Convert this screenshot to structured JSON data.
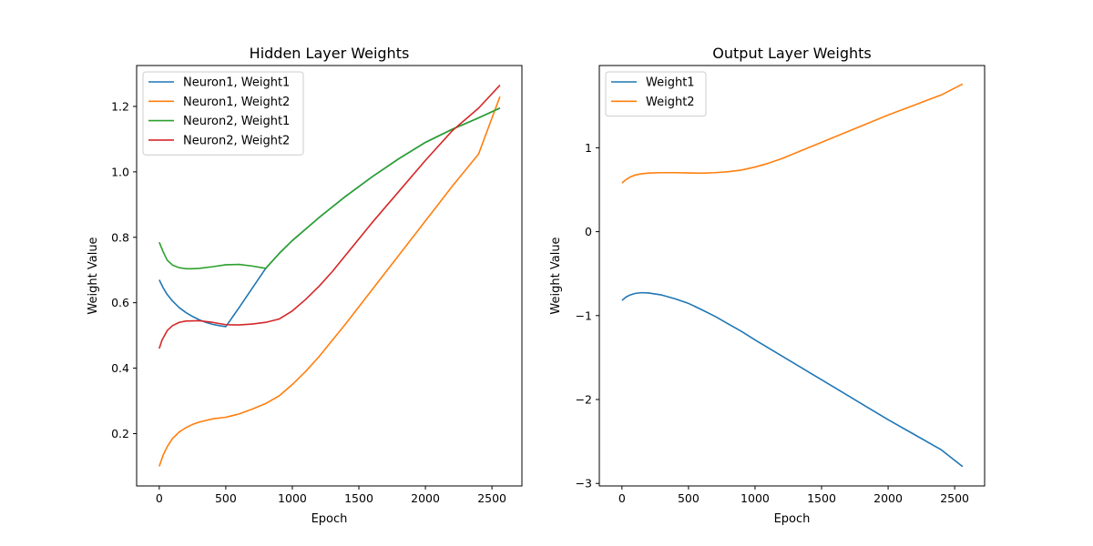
{
  "chart_data": [
    {
      "type": "line",
      "title": "Hidden Layer Weights",
      "xlabel": "Epoch",
      "ylabel": "Weight Value",
      "xlim": [
        -170,
        2725
      ],
      "ylim": [
        0.04,
        1.325
      ],
      "xticks": [
        0,
        500,
        1000,
        1500,
        2000,
        2500
      ],
      "xtick_labels": [
        "0",
        "500",
        "1000",
        "1500",
        "2000",
        "2500"
      ],
      "yticks": [
        0.2,
        0.4,
        0.6,
        0.8,
        1.0,
        1.2
      ],
      "ytick_labels": [
        "0.2",
        "0.4",
        "0.6",
        "0.8",
        "1.0",
        "1.2"
      ],
      "grid": false,
      "legend": "upper-left",
      "series": [
        {
          "name": "Neuron1, Weight1",
          "color": "#1f77b4",
          "x": [
            0,
            30,
            60,
            100,
            150,
            200,
            250,
            300,
            350,
            400,
            450,
            500,
            600,
            700,
            800,
            900,
            1000,
            1200,
            1400,
            1600,
            1800,
            2000,
            2200,
            2400,
            2560
          ],
          "y": [
            0.67,
            0.645,
            0.625,
            0.605,
            0.585,
            0.57,
            0.558,
            0.548,
            0.54,
            0.534,
            0.53,
            0.527,
            0.585,
            0.645,
            0.705,
            0.75,
            0.79,
            0.86,
            0.925,
            0.985,
            1.04,
            1.09,
            1.13,
            1.165,
            1.195
          ]
        },
        {
          "name": "Neuron1, Weight2",
          "color": "#ff7f0e",
          "x": [
            0,
            30,
            60,
            100,
            150,
            200,
            250,
            300,
            400,
            500,
            600,
            700,
            800,
            900,
            1000,
            1100,
            1200,
            1300,
            1400,
            1600,
            1800,
            2000,
            2200,
            2400,
            2560
          ],
          "y": [
            0.1,
            0.135,
            0.16,
            0.185,
            0.205,
            0.218,
            0.228,
            0.235,
            0.245,
            0.25,
            0.26,
            0.275,
            0.292,
            0.315,
            0.35,
            0.39,
            0.435,
            0.485,
            0.535,
            0.64,
            0.745,
            0.85,
            0.955,
            1.055,
            1.23
          ]
        },
        {
          "name": "Neuron2, Weight1",
          "color": "#2ca02c",
          "x": [
            0,
            30,
            60,
            100,
            150,
            200,
            250,
            300,
            400,
            500,
            600,
            700,
            800,
            900,
            1000,
            1200,
            1400,
            1600,
            1800,
            2000,
            2200,
            2400,
            2560
          ],
          "y": [
            0.785,
            0.755,
            0.73,
            0.715,
            0.707,
            0.704,
            0.704,
            0.705,
            0.71,
            0.716,
            0.717,
            0.712,
            0.705,
            0.75,
            0.79,
            0.86,
            0.925,
            0.985,
            1.04,
            1.09,
            1.13,
            1.165,
            1.195
          ]
        },
        {
          "name": "Neuron2, Weight2",
          "color": "#d62728",
          "x": [
            0,
            20,
            40,
            60,
            100,
            150,
            200,
            300,
            400,
            500,
            600,
            700,
            800,
            900,
            1000,
            1100,
            1200,
            1300,
            1400,
            1600,
            1800,
            2000,
            2200,
            2400,
            2560
          ],
          "y": [
            0.46,
            0.485,
            0.5,
            0.515,
            0.53,
            0.54,
            0.544,
            0.545,
            0.54,
            0.533,
            0.532,
            0.535,
            0.54,
            0.55,
            0.575,
            0.61,
            0.65,
            0.695,
            0.745,
            0.845,
            0.94,
            1.035,
            1.125,
            1.195,
            1.265
          ]
        }
      ]
    },
    {
      "type": "line",
      "title": "Output Layer Weights",
      "xlabel": "Epoch",
      "ylabel": "Weight Value",
      "xlim": [
        -170,
        2725
      ],
      "ylim": [
        -3.03,
        1.98
      ],
      "xticks": [
        0,
        500,
        1000,
        1500,
        2000,
        2500
      ],
      "xtick_labels": [
        "0",
        "500",
        "1000",
        "1500",
        "2000",
        "2500"
      ],
      "yticks": [
        -3,
        -2,
        -1,
        0,
        1
      ],
      "ytick_labels": [
        "−3",
        "−2",
        "−1",
        "0",
        "1"
      ],
      "grid": false,
      "legend": "upper-left",
      "series": [
        {
          "name": "Weight1",
          "color": "#1f77b4",
          "x": [
            0,
            30,
            60,
            100,
            150,
            200,
            300,
            400,
            500,
            600,
            700,
            800,
            900,
            1000,
            1200,
            1400,
            1600,
            1800,
            2000,
            2200,
            2400,
            2560
          ],
          "y": [
            -0.82,
            -0.78,
            -0.755,
            -0.735,
            -0.727,
            -0.73,
            -0.755,
            -0.8,
            -0.855,
            -0.93,
            -1.01,
            -1.1,
            -1.19,
            -1.29,
            -1.48,
            -1.67,
            -1.86,
            -2.05,
            -2.24,
            -2.42,
            -2.6,
            -2.8
          ]
        },
        {
          "name": "Weight2",
          "color": "#ff7f0e",
          "x": [
            0,
            30,
            60,
            100,
            150,
            200,
            300,
            400,
            500,
            600,
            700,
            800,
            900,
            1000,
            1100,
            1200,
            1400,
            1600,
            1800,
            2000,
            2200,
            2400,
            2560
          ],
          "y": [
            0.58,
            0.62,
            0.65,
            0.675,
            0.69,
            0.698,
            0.703,
            0.703,
            0.7,
            0.697,
            0.703,
            0.715,
            0.735,
            0.77,
            0.815,
            0.87,
            1.0,
            1.13,
            1.26,
            1.39,
            1.51,
            1.63,
            1.76
          ]
        }
      ]
    }
  ]
}
